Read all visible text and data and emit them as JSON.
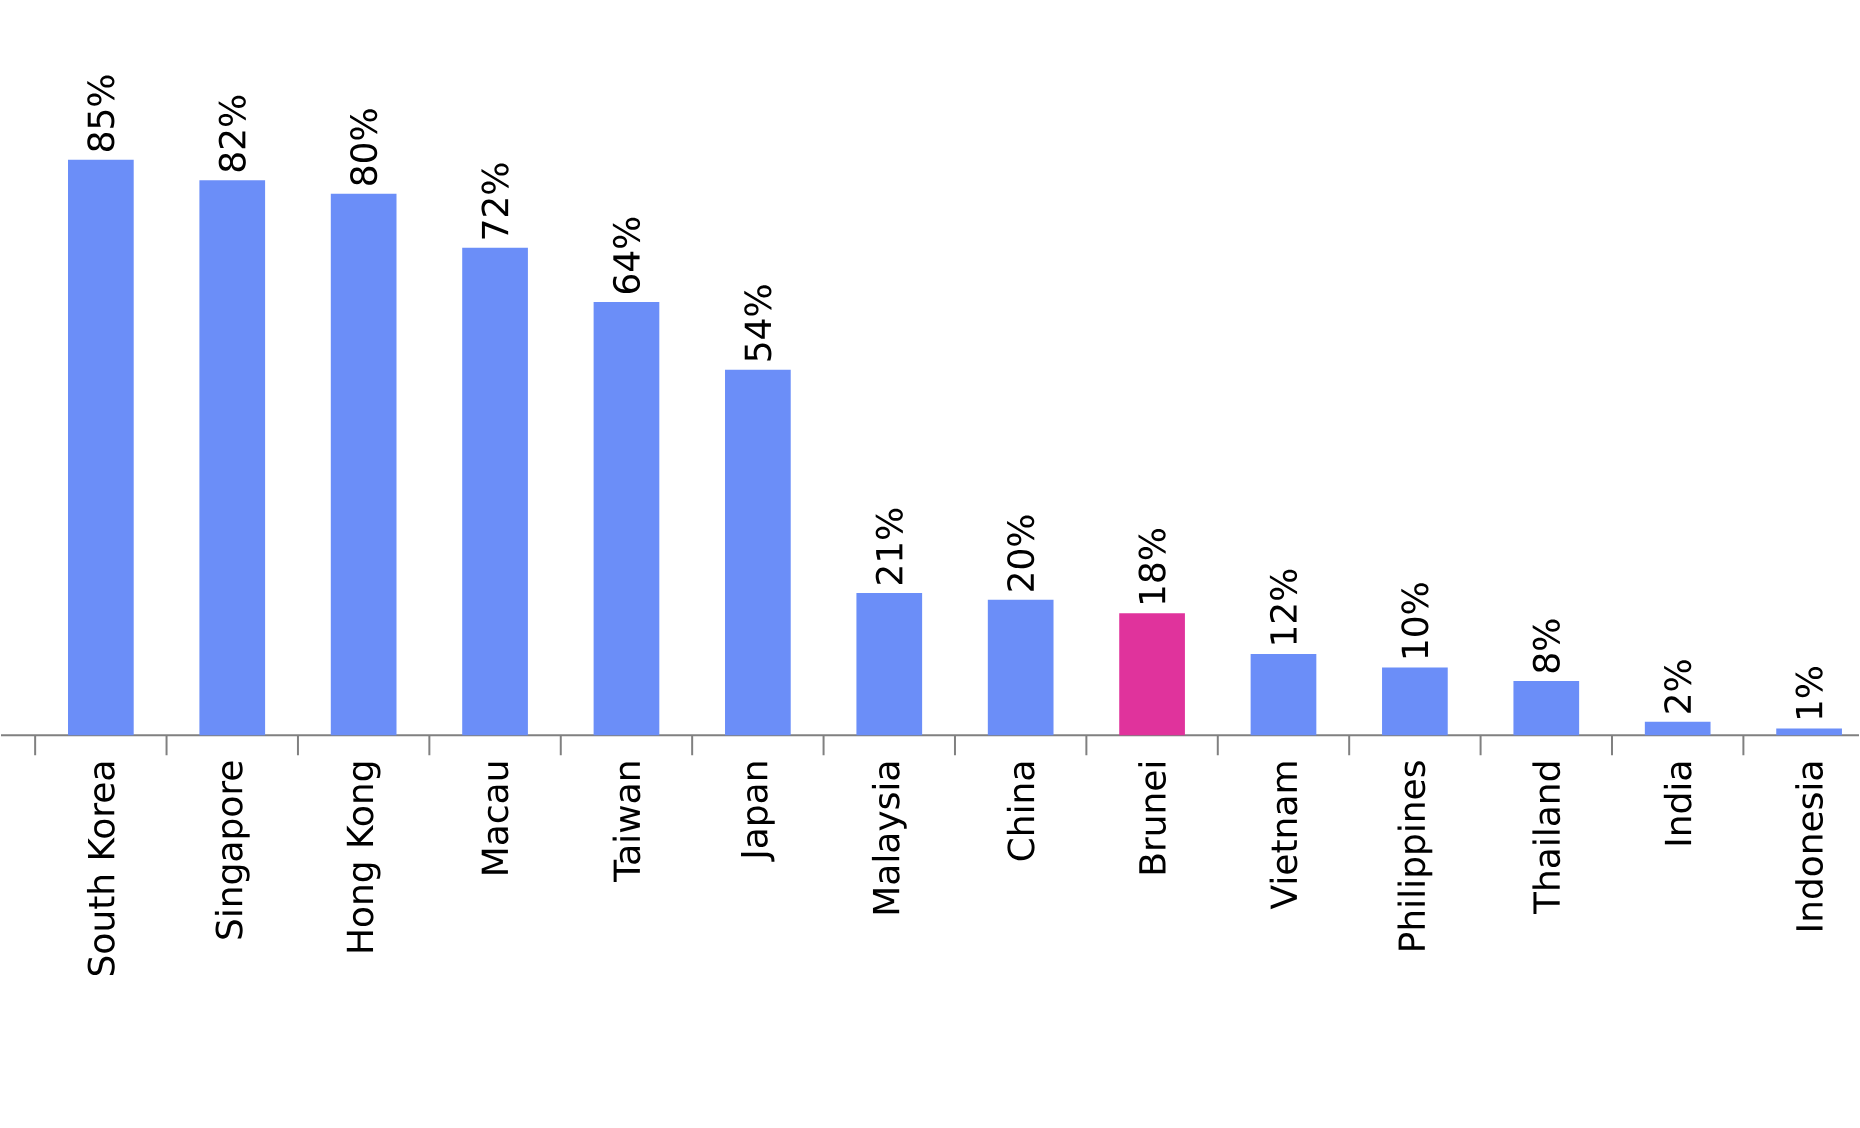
{
  "chart_data": {
    "type": "bar",
    "categories": [
      "South Korea",
      "Singapore",
      "Hong Kong",
      "Macau",
      "Taiwan",
      "Japan",
      "Malaysia",
      "China",
      "Brunei",
      "Vietnam",
      "Philippines",
      "Thailand",
      "India",
      "Indonesia"
    ],
    "values": [
      85,
      82,
      80,
      72,
      64,
      54,
      21,
      20,
      18,
      12,
      10,
      8,
      2,
      1
    ],
    "value_labels": [
      "85%",
      "82%",
      "80%",
      "72%",
      "64%",
      "54%",
      "21%",
      "20%",
      "18%",
      "12%",
      "10%",
      "8%",
      "2%",
      "1%"
    ],
    "colors": [
      "#6b8ef8",
      "#6b8ef8",
      "#6b8ef8",
      "#6b8ef8",
      "#6b8ef8",
      "#6b8ef8",
      "#6b8ef8",
      "#6b8ef8",
      "#e0339c",
      "#6b8ef8",
      "#6b8ef8",
      "#6b8ef8",
      "#6b8ef8",
      "#6b8ef8"
    ]
  }
}
